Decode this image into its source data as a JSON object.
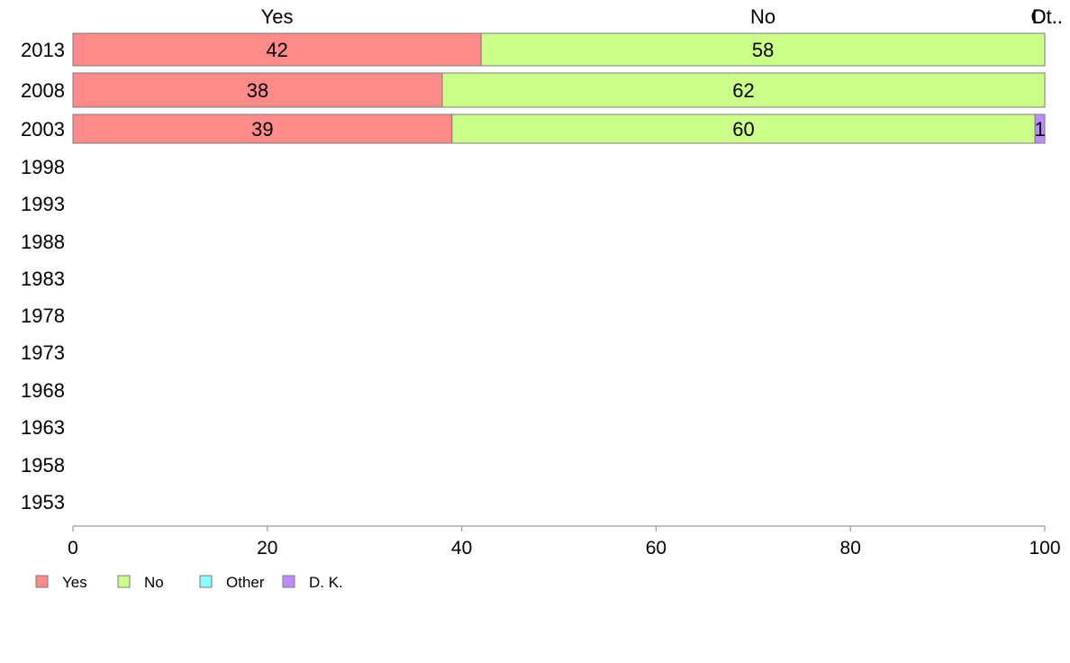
{
  "chart_data": {
    "type": "bar",
    "orientation": "horizontal",
    "stacked": true,
    "categories": [
      "2013",
      "2008",
      "2003",
      "1998",
      "1993",
      "1988",
      "1983",
      "1978",
      "1973",
      "1968",
      "1963",
      "1958",
      "1953"
    ],
    "series": [
      {
        "name": "Yes",
        "color": "#ff8a8a",
        "values": [
          42,
          38,
          39,
          null,
          null,
          null,
          null,
          null,
          null,
          null,
          null,
          null,
          null
        ]
      },
      {
        "name": "No",
        "color": "#ccff8a",
        "values": [
          58,
          62,
          60,
          null,
          null,
          null,
          null,
          null,
          null,
          null,
          null,
          null,
          null
        ]
      },
      {
        "name": "Other",
        "color": "#8affff",
        "values": [
          0,
          0,
          0,
          null,
          null,
          null,
          null,
          null,
          null,
          null,
          null,
          null,
          null
        ]
      },
      {
        "name": "D. K.",
        "color": "#c08aff",
        "values": [
          0,
          0,
          1,
          null,
          null,
          null,
          null,
          null,
          null,
          null,
          null,
          null,
          null
        ]
      }
    ],
    "data_labels": [
      [
        "42",
        "58",
        "",
        ""
      ],
      [
        "38",
        "62",
        "",
        ""
      ],
      [
        "39",
        "60",
        "",
        "1"
      ]
    ],
    "top_labels": [
      "Yes",
      "No",
      "Ot..",
      "D..."
    ],
    "xticks": [
      "0",
      "20",
      "40",
      "60",
      "80",
      "100"
    ],
    "xlim": [
      0,
      100
    ],
    "title": "",
    "xlabel": "",
    "ylabel": "",
    "grid": false,
    "legend": {
      "position": "bottom-left",
      "entries": [
        "Yes",
        "No",
        "Other",
        "D. K."
      ]
    }
  }
}
